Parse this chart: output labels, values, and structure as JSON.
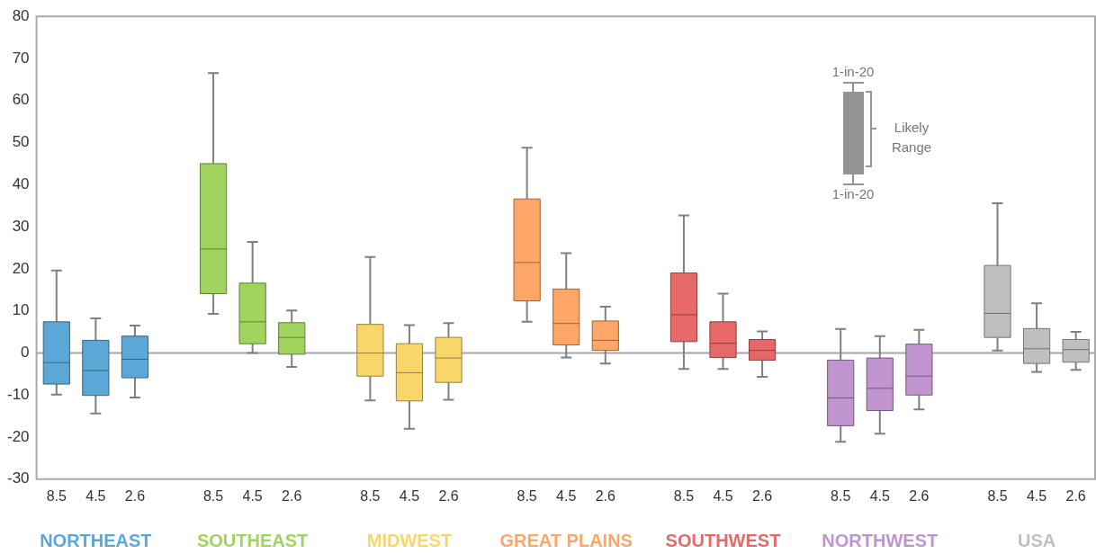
{
  "chart_data": {
    "type": "box",
    "categories": [
      "8.5",
      "4.5",
      "2.6",
      null,
      "8.5",
      "4.5",
      "2.6",
      null,
      "8.5",
      "4.5",
      "2.6",
      null,
      "8.5",
      "4.5",
      "2.6",
      null,
      "8.5",
      "4.5",
      "2.6",
      null,
      "8.5",
      "4.5",
      "2.6",
      null,
      "8.5",
      "4.5",
      "2.6"
    ],
    "series": [
      {
        "name": "NORTHEAST",
        "color": "#5ba7d6",
        "boxes": [
          {
            "low": -9.9,
            "q1": -7.4,
            "median": -2.3,
            "q3": 7.4,
            "high": 19.6
          },
          {
            "low": -14.4,
            "q1": -10.1,
            "median": -4.2,
            "q3": 3.0,
            "high": 8.2
          },
          {
            "low": -10.6,
            "q1": -5.9,
            "median": -1.5,
            "q3": 4.0,
            "high": 6.5
          },
          null,
          null,
          null,
          null,
          null,
          null,
          null,
          null,
          null,
          null,
          null,
          null,
          null,
          null,
          null,
          null,
          null,
          null,
          null,
          null,
          null,
          null,
          null,
          null
        ]
      },
      {
        "name": "SOUTHEAST",
        "color": "#a0d45f",
        "boxes": [
          null,
          null,
          null,
          null,
          {
            "low": 9.3,
            "q1": 14.1,
            "median": 24.7,
            "q3": 45,
            "high": 66.5
          },
          {
            "low": 0,
            "q1": 2.2,
            "median": 7.4,
            "q3": 16.6,
            "high": 26.4
          },
          {
            "low": -3.3,
            "q1": -0.3,
            "median": 3.7,
            "q3": 7.2,
            "high": 10.1
          },
          null,
          null,
          null,
          null,
          null,
          null,
          null,
          null,
          null,
          null,
          null,
          null,
          null,
          null,
          null,
          null,
          null,
          null,
          null,
          null
        ]
      },
      {
        "name": "MIDWEST",
        "color": "#f9d66a",
        "boxes": [
          null,
          null,
          null,
          null,
          null,
          null,
          null,
          null,
          {
            "low": -11.3,
            "q1": -5.5,
            "median": 0,
            "q3": 6.8,
            "high": 22.8
          },
          {
            "low": -18,
            "q1": -11.4,
            "median": -4.7,
            "q3": 2.2,
            "high": 6.6
          },
          {
            "low": -11.1,
            "q1": -7,
            "median": -1.2,
            "q3": 3.7,
            "high": 7.1
          },
          null,
          null,
          null,
          null,
          null,
          null,
          null,
          null,
          null,
          null,
          null,
          null,
          null,
          null,
          null,
          null
        ]
      },
      {
        "name": "GREAT PLAINS",
        "color": "#fea667",
        "boxes": [
          null,
          null,
          null,
          null,
          null,
          null,
          null,
          null,
          null,
          null,
          null,
          null,
          {
            "low": 7.4,
            "q1": 12.4,
            "median": 21.5,
            "q3": 36.6,
            "high": 48.8
          },
          {
            "low": -1.1,
            "q1": 1.9,
            "median": 7,
            "q3": 15.2,
            "high": 23.7
          },
          {
            "low": -2.5,
            "q1": 0.6,
            "median": 3,
            "q3": 7.6,
            "high": 11
          },
          null,
          null,
          null,
          null,
          null,
          null,
          null,
          null,
          null,
          null,
          null,
          null
        ]
      },
      {
        "name": "SOUTHWEST",
        "color": "#e66868",
        "boxes": [
          null,
          null,
          null,
          null,
          null,
          null,
          null,
          null,
          null,
          null,
          null,
          null,
          null,
          null,
          null,
          null,
          {
            "low": -3.8,
            "q1": 2.7,
            "median": 9.1,
            "q3": 19,
            "high": 32.7
          },
          {
            "low": -3.8,
            "q1": -1.1,
            "median": 2.3,
            "q3": 7.4,
            "high": 14.1
          },
          {
            "low": -5.7,
            "q1": -1.7,
            "median": 0.6,
            "q3": 3.2,
            "high": 5.1
          },
          null,
          null,
          null,
          null,
          null,
          null,
          null,
          null
        ]
      },
      {
        "name": "NORTHWEST",
        "color": "#bf94cf",
        "boxes": [
          null,
          null,
          null,
          null,
          null,
          null,
          null,
          null,
          null,
          null,
          null,
          null,
          null,
          null,
          null,
          null,
          null,
          null,
          null,
          null,
          {
            "low": -21.1,
            "q1": -17.3,
            "median": -10.7,
            "q3": -1.7,
            "high": 5.7
          },
          {
            "low": -19.2,
            "q1": -13.7,
            "median": -8.4,
            "q3": -1.2,
            "high": 4
          },
          {
            "low": -13.4,
            "q1": -10,
            "median": -5.5,
            "q3": 2.1,
            "high": 5.5
          },
          null,
          null,
          null,
          null
        ]
      },
      {
        "name": "USA",
        "color": "#bfbfbf",
        "boxes": [
          null,
          null,
          null,
          null,
          null,
          null,
          null,
          null,
          null,
          null,
          null,
          null,
          null,
          null,
          null,
          null,
          null,
          null,
          null,
          null,
          null,
          null,
          null,
          null,
          {
            "low": 0.6,
            "q1": 3.7,
            "median": 9.4,
            "q3": 20.8,
            "high": 35.6
          },
          {
            "low": -4.5,
            "q1": -2.5,
            "median": 1,
            "q3": 5.8,
            "high": 11.8
          },
          {
            "low": -4,
            "q1": -2.2,
            "median": 0.8,
            "q3": 3.2,
            "high": 5
          }
        ]
      }
    ],
    "ylim": [
      -30,
      80
    ],
    "yticks": [
      -30,
      -20,
      -10,
      0,
      10,
      20,
      30,
      40,
      50,
      60,
      70,
      80
    ],
    "ref_lines": [
      {
        "axis": "y",
        "value": 0,
        "color": "#a6a6a6"
      }
    ],
    "annotations": [
      "1-in-20",
      "Likely Range",
      "1-in-20"
    ],
    "grid": false,
    "legend": false
  }
}
